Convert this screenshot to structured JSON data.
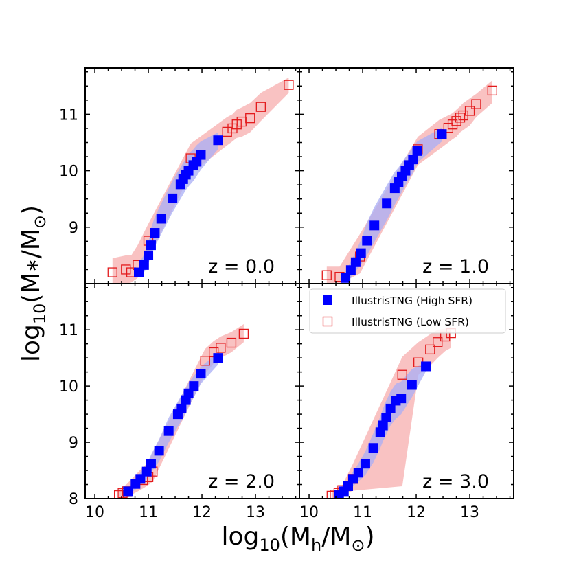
{
  "chart_data": {
    "type": "scatter",
    "xlabel": {
      "prefix": "log",
      "sub": "10",
      "body": "(M",
      "sub2": "h",
      "mid": "/M",
      "sub3": "⊙",
      "end": ")"
    },
    "ylabel": {
      "prefix": "log",
      "sub": "10",
      "body": "(M",
      "sub2": "∗",
      "mid": "/M",
      "sub3": "⊙",
      "end": ")"
    },
    "xlim": [
      9.82,
      13.82
    ],
    "ylim": [
      8.0,
      11.82
    ],
    "x_ticks": [
      10,
      11,
      12,
      13
    ],
    "y_ticks": [
      8,
      9,
      10,
      11
    ],
    "x_minor_step": 0.25,
    "y_minor_step": 0.25,
    "grid": false,
    "legend": {
      "placement": "top-right of lower-right panel",
      "entries": [
        {
          "label": "IllustrisTNG (High SFR)",
          "marker": "filled-square",
          "color": "#0000ff"
        },
        {
          "label": "IllustrisTNG (Low SFR)",
          "marker": "open-square",
          "color": "#e31a1c"
        }
      ]
    },
    "colors": {
      "high": "#0000ff",
      "high_band": "#a8aef5",
      "low": "#e31a1c",
      "low_band": "#f7a8a8"
    },
    "panels": [
      {
        "annotation": "z = 0.0",
        "series": [
          {
            "name": "IllustrisTNG (High SFR)",
            "x": [
              10.82,
              10.92,
              11.0,
              11.05,
              11.12,
              11.24,
              11.45,
              11.6,
              11.65,
              11.7,
              11.75,
              11.84,
              11.9,
              11.98,
              12.3
            ],
            "y": [
              8.2,
              8.33,
              8.5,
              8.68,
              8.9,
              9.15,
              9.51,
              9.76,
              9.85,
              9.93,
              10.0,
              10.1,
              10.16,
              10.28,
              10.54
            ],
            "band_upper": [
              8.34,
              8.52,
              8.72,
              8.98,
              9.18,
              9.42,
              9.82,
              10.06,
              10.14,
              10.2,
              10.3,
              10.38,
              10.45,
              10.52,
              10.68
            ],
            "band_lower": [
              8.12,
              8.2,
              8.35,
              8.5,
              8.66,
              8.88,
              9.26,
              9.5,
              9.58,
              9.66,
              9.72,
              9.82,
              9.9,
              10.02,
              10.38
            ]
          },
          {
            "name": "IllustrisTNG (Low SFR)",
            "x": [
              10.33,
              10.58,
              10.68,
              10.8,
              11.0,
              11.79,
              12.47,
              12.57,
              12.65,
              12.74,
              12.9,
              13.1,
              13.62
            ],
            "y": [
              8.2,
              8.25,
              8.2,
              8.33,
              8.76,
              10.22,
              10.69,
              10.75,
              10.82,
              10.87,
              10.93,
              11.13,
              11.52
            ],
            "band_upper": [
              8.45,
              8.5,
              8.5,
              8.68,
              9.06,
              10.48,
              10.95,
              11.0,
              11.08,
              11.12,
              11.2,
              11.38,
              11.65
            ],
            "band_lower": [
              8.0,
              8.0,
              8.02,
              8.1,
              8.46,
              9.95,
              10.45,
              10.52,
              10.58,
              10.6,
              10.68,
              10.88,
              11.38
            ]
          }
        ]
      },
      {
        "annotation": "z = 1.0",
        "series": [
          {
            "name": "IllustrisTNG (High SFR)",
            "x": [
              10.68,
              10.78,
              10.87,
              10.97,
              11.08,
              11.22,
              11.45,
              11.6,
              11.67,
              11.73,
              11.8,
              11.87,
              11.94,
              12.02,
              12.48
            ],
            "y": [
              8.1,
              8.24,
              8.38,
              8.54,
              8.76,
              9.03,
              9.42,
              9.69,
              9.8,
              9.9,
              10.0,
              10.1,
              10.2,
              10.35,
              10.65
            ],
            "band_upper": [
              8.2,
              8.4,
              8.56,
              8.78,
              9.08,
              9.36,
              9.74,
              9.98,
              10.06,
              10.14,
              10.24,
              10.32,
              10.42,
              10.52,
              10.76
            ],
            "band_lower": [
              8.02,
              8.1,
              8.22,
              8.34,
              8.5,
              8.74,
              9.12,
              9.4,
              9.52,
              9.62,
              9.74,
              9.86,
              9.96,
              10.14,
              10.52
            ]
          },
          {
            "name": "IllustrisTNG (Low SFR)",
            "x": [
              10.33,
              10.57,
              10.95,
              12.03,
              12.43,
              12.6,
              12.68,
              12.75,
              12.82,
              12.88,
              13.0,
              13.12,
              13.42
            ],
            "y": [
              8.15,
              8.12,
              8.48,
              10.38,
              10.65,
              10.76,
              10.82,
              10.88,
              10.94,
              10.98,
              11.06,
              11.18,
              11.42
            ],
            "band_upper": [
              8.3,
              8.3,
              8.88,
              10.6,
              10.9,
              10.98,
              11.02,
              11.08,
              11.14,
              11.2,
              11.28,
              11.36,
              11.6
            ],
            "band_lower": [
              8.0,
              8.0,
              8.18,
              10.1,
              10.38,
              10.5,
              10.56,
              10.6,
              10.68,
              10.72,
              10.8,
              10.95,
              11.2
            ]
          }
        ]
      },
      {
        "annotation": "z = 2.0",
        "series": [
          {
            "name": "IllustrisTNG (High SFR)",
            "x": [
              10.62,
              10.76,
              10.85,
              10.97,
              11.05,
              11.2,
              11.38,
              11.55,
              11.62,
              11.7,
              11.75,
              11.85,
              11.98,
              12.3
            ],
            "y": [
              8.13,
              8.26,
              8.35,
              8.48,
              8.62,
              8.85,
              9.2,
              9.5,
              9.6,
              9.75,
              9.87,
              10.0,
              10.22,
              10.5
            ],
            "band_upper": [
              8.2,
              8.34,
              8.46,
              8.6,
              8.78,
              9.05,
              9.44,
              9.72,
              9.84,
              9.96,
              10.06,
              10.18,
              10.34,
              10.6
            ],
            "band_lower": [
              8.06,
              8.16,
              8.24,
              8.34,
              8.46,
              8.66,
              9.0,
              9.28,
              9.38,
              9.52,
              9.64,
              9.8,
              10.04,
              10.38
            ]
          },
          {
            "name": "IllustrisTNG (Low SFR)",
            "x": [
              10.45,
              10.52,
              10.6,
              10.9,
              11.0,
              11.08,
              12.06,
              12.22,
              12.35,
              12.55,
              12.78
            ],
            "y": [
              8.06,
              8.1,
              8.13,
              8.33,
              8.38,
              8.48,
              10.45,
              10.6,
              10.68,
              10.77,
              10.93
            ],
            "band_upper": [
              8.16,
              8.2,
              8.26,
              8.56,
              8.64,
              8.82,
              10.66,
              10.8,
              10.88,
              10.96,
              11.1
            ],
            "band_lower": [
              8.0,
              8.0,
              8.02,
              8.18,
              8.24,
              8.3,
              10.22,
              10.4,
              10.5,
              10.6,
              10.78
            ]
          }
        ]
      },
      {
        "annotation": "z = 3.0",
        "series": [
          {
            "name": "IllustrisTNG (High SFR)",
            "x": [
              10.56,
              10.65,
              10.73,
              10.82,
              10.92,
              11.05,
              11.2,
              11.33,
              11.38,
              11.44,
              11.52,
              11.62,
              11.72,
              11.92,
              12.18
            ],
            "y": [
              8.06,
              8.13,
              8.22,
              8.35,
              8.46,
              8.62,
              8.9,
              9.18,
              9.3,
              9.44,
              9.6,
              9.74,
              9.78,
              10.02,
              10.35
            ],
            "band_upper": [
              8.12,
              8.2,
              8.32,
              8.48,
              8.62,
              8.84,
              9.16,
              9.46,
              9.6,
              9.74,
              9.9,
              10.04,
              10.08,
              10.3,
              10.42
            ],
            "band_lower": [
              8.02,
              8.06,
              8.12,
              8.22,
              8.3,
              8.42,
              8.64,
              8.9,
              9.02,
              9.14,
              9.3,
              9.42,
              9.5,
              9.8,
              10.26
            ]
          },
          {
            "name": "IllustrisTNG (Low SFR)",
            "x": [
              10.42,
              10.48,
              10.55,
              10.62,
              10.82,
              11.74,
              12.04,
              12.26,
              12.4,
              12.54,
              12.65
            ],
            "y": [
              8.05,
              8.07,
              8.1,
              8.15,
              8.35,
              10.2,
              10.42,
              10.65,
              10.78,
              10.88,
              10.94
            ],
            "band_upper": [
              8.1,
              8.12,
              8.16,
              8.24,
              8.62,
              10.52,
              10.78,
              10.92,
              11.0,
              11.02,
              11.05
            ],
            "band_lower": [
              8.0,
              8.0,
              8.02,
              8.06,
              8.14,
              8.22,
              10.2,
              10.36,
              10.5,
              10.62,
              10.68
            ]
          }
        ]
      }
    ]
  }
}
